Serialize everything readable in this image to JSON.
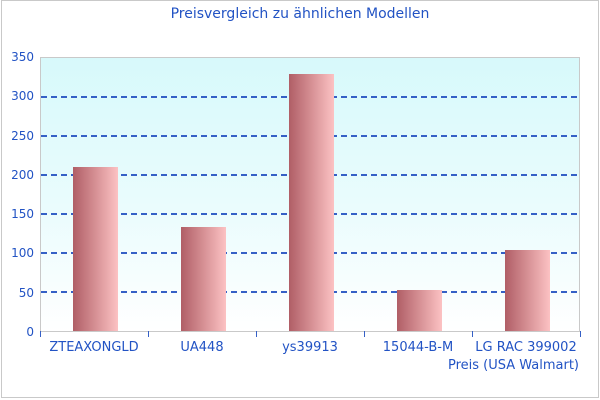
{
  "title": "Preisvergleich zu ähnlichen Modellen",
  "chart_data": {
    "type": "bar",
    "title": "Preisvergleich zu ähnlichen Modellen",
    "categories": [
      "ZTEAXONGLD",
      "UA448",
      "ys39913",
      "15044-B-M",
      "LG RAC 399002"
    ],
    "values": [
      210,
      133,
      330,
      53,
      104
    ],
    "xlabel": "Preis (USA Walmart)",
    "ylabel": "",
    "ylim": [
      0,
      350
    ],
    "yticks": [
      0,
      50,
      100,
      150,
      200,
      250,
      300,
      350
    ],
    "grid": "horizontal-dashed",
    "legend_position": "none",
    "colors": {
      "text": "#2253c4",
      "gridline": "#3560c6",
      "bar_gradient_left": "#b05e66",
      "bar_gradient_right": "#fcc2c3",
      "plot_bg_top": "#d7f9fb",
      "plot_bg_bottom": "#ffffff",
      "frame_border": "#c9c9c9"
    }
  }
}
